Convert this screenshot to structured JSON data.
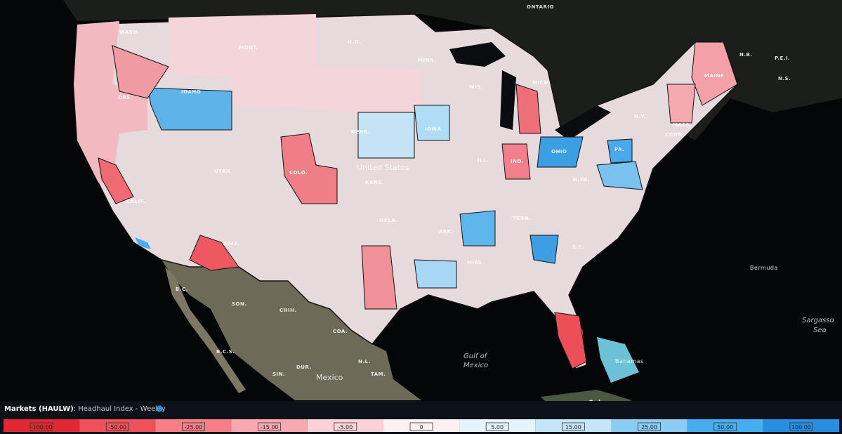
{
  "map": {
    "labels": [
      "ONTARIO",
      "WASH.",
      "MONT.",
      "N.D.",
      "MINN.",
      "WIS.",
      "MICH.",
      "IDAHO",
      "ORE.",
      "NEBR.",
      "IOWA",
      "United States",
      "KANS.",
      "COLO.",
      "UTAH",
      "CALIF.",
      "ILL.",
      "IND.",
      "OHIO",
      "PA.",
      "N.Y.",
      "MAINE",
      "N.B.",
      "P.E.I.",
      "N.S.",
      "W.VA.",
      "S.C.",
      "TENN.",
      "ARK.",
      "OKLA.",
      "MISS.",
      "ARIZ.",
      "CONN.",
      "MASS.",
      "Bermuda",
      "Sargasso",
      "Sea",
      "Gulf of",
      "Mexico",
      "Bahamas",
      "Mexico",
      "SON.",
      "CHIH.",
      "COA.",
      "N.L.",
      "TAM.",
      "B.C.S.",
      "SIN.",
      "DUR.",
      "B.C.",
      "Cuba"
    ]
  },
  "legend": {
    "title": "Markets (HAULW)",
    "subtitle": ": Headhaul Index - Weekly",
    "bins": [
      {
        "label": "-100.00",
        "color": "#e22834"
      },
      {
        "label": "-50.00",
        "color": "#ef515b"
      },
      {
        "label": "-25.00",
        "color": "#f47f87"
      },
      {
        "label": "-15.00",
        "color": "#f8a9af"
      },
      {
        "label": "-5.00",
        "color": "#fbd2d6"
      },
      {
        "label": "0",
        "color": "#fcf0f2"
      },
      {
        "label": "5.00",
        "color": "#e5f4fc"
      },
      {
        "label": "15.00",
        "color": "#c5e5f8"
      },
      {
        "label": "25.00",
        "color": "#8ccbf2"
      },
      {
        "label": "50.00",
        "color": "#46aeee"
      },
      {
        "label": "100.00",
        "color": "#2a8ee0"
      }
    ]
  }
}
